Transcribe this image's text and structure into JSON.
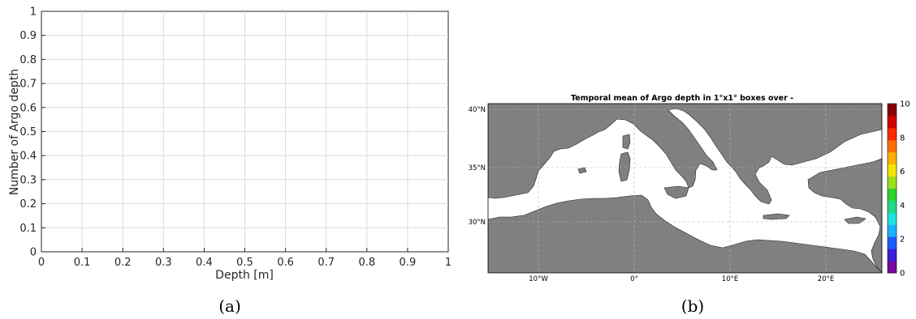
{
  "chart_data": [
    {
      "type": "line",
      "xlabel": "Depth [m]",
      "ylabel": "Number of Argo depth",
      "xlim": [
        0,
        1
      ],
      "ylim": [
        0,
        1
      ],
      "xticks": [
        "0",
        "0.1",
        "0.2",
        "0.3",
        "0.4",
        "0.5",
        "0.6",
        "0.7",
        "0.8",
        "0.9",
        "1"
      ],
      "yticks": [
        "0",
        "0.1",
        "0.2",
        "0.3",
        "0.4",
        "0.5",
        "0.6",
        "0.7",
        "0.8",
        "0.9",
        "1"
      ],
      "grid": true,
      "series": [],
      "caption": "(a)"
    },
    {
      "type": "heatmap",
      "title": "Temporal mean of Argo depth in 1°x1° boxes over -",
      "lat_ticks": [
        "40°N",
        "35°N",
        "30°N"
      ],
      "lon_ticks": [
        "10°W",
        "0°",
        "10°E",
        "20°E"
      ],
      "colorbar_ticks": [
        "0",
        "2",
        "4",
        "6",
        "8",
        "10"
      ],
      "colorbar_range": [
        0,
        10
      ],
      "colorbar_colors": [
        "#7a0a9e",
        "#3a1fd6",
        "#1e5bff",
        "#1fb0ff",
        "#20e0e0",
        "#22d98a",
        "#2fd42a",
        "#9be01d",
        "#f1e600",
        "#ffb000",
        "#ff7000",
        "#ff2a00",
        "#d40000",
        "#8a0000"
      ],
      "land_color": "#808080",
      "sea_color": "#ffffff",
      "grid": true,
      "caption": "(b)"
    }
  ]
}
